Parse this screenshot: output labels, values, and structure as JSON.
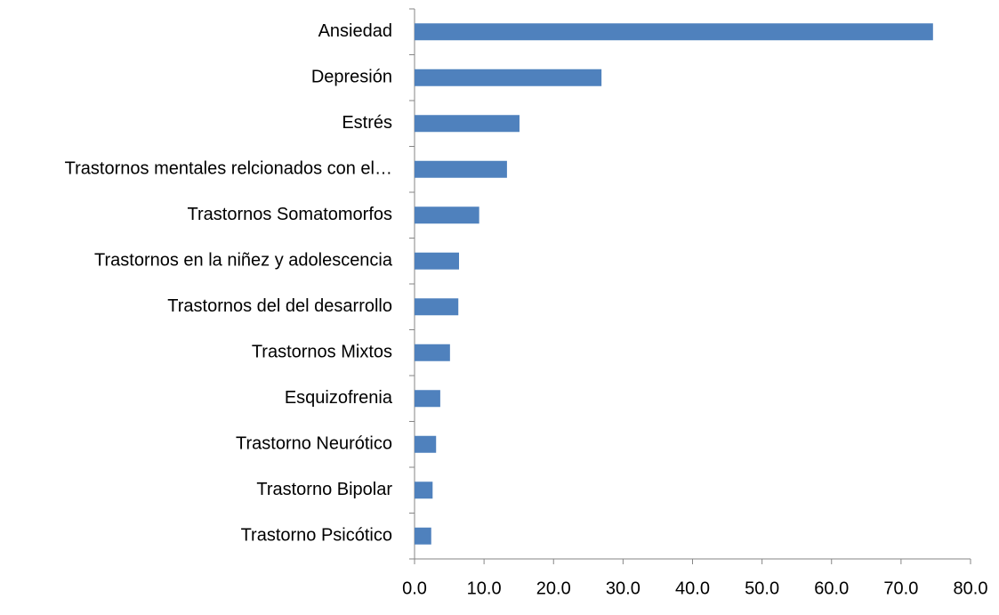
{
  "chart_data": {
    "type": "hbar",
    "categories": [
      "Ansiedad",
      "Depresión",
      "Estrés",
      "Trastornos mentales relcionados con el…",
      "Trastornos Somatomorfos",
      "Trastornos en la niñez y adolescencia",
      "Trastornos del del desarrollo",
      "Trastornos Mixtos",
      "Esquizofrenia",
      "Trastorno Neurótico",
      "Trastorno Bipolar",
      "Trastorno Psicótico"
    ],
    "values": [
      74.6,
      26.9,
      15.1,
      13.3,
      9.3,
      6.4,
      6.3,
      5.1,
      3.7,
      3.1,
      2.6,
      2.4
    ],
    "color": "#4f81bd",
    "xlim": [
      0,
      80
    ],
    "xticks": [
      {
        "value": 0,
        "label": "0.0"
      },
      {
        "value": 10,
        "label": "10.0"
      },
      {
        "value": 20,
        "label": "20.0"
      },
      {
        "value": 30,
        "label": "30.0"
      },
      {
        "value": 40,
        "label": "40.0"
      },
      {
        "value": 50,
        "label": "50.0"
      },
      {
        "value": 60,
        "label": "60.0"
      },
      {
        "value": 70,
        "label": "70.0"
      },
      {
        "value": 80,
        "label": "80.0"
      }
    ],
    "grid": false
  }
}
